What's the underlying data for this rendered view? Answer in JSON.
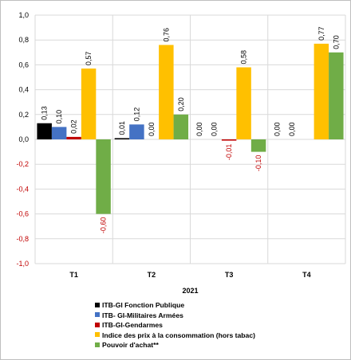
{
  "chart_data": {
    "type": "bar",
    "title": "",
    "xlabel": "2021",
    "ylabel": "",
    "ylim": [
      -1.0,
      1.0
    ],
    "yticks": [
      "1,0",
      "0,8",
      "0,6",
      "0,4",
      "0,2",
      "0,0",
      "-0,2",
      "-0,4",
      "-0,6",
      "-0,8",
      "-1,0"
    ],
    "grid": true,
    "legend_position": "bottom",
    "categories": [
      "T1",
      "T2",
      "T3",
      "T4"
    ],
    "series": [
      {
        "name": "ITB-GI Fonction Publique",
        "color": "#000000",
        "values": [
          0.13,
          0.01,
          0.0,
          0.0
        ],
        "labels": [
          "0,13",
          "0,01",
          "0,00",
          "0,00"
        ]
      },
      {
        "name": "ITB- GI-Militaires Armées",
        "color": "#4472c4",
        "values": [
          0.1,
          0.12,
          0.0,
          0.0
        ],
        "labels": [
          "0,10",
          "0,12",
          "0,00",
          "0,00"
        ]
      },
      {
        "name": "ITB-GI-Gendarmes",
        "color": "#c00000",
        "values": [
          0.02,
          0.0,
          -0.01,
          null
        ],
        "labels": [
          "0,02",
          "0,00",
          "-0,01",
          ""
        ]
      },
      {
        "name": "Indice des prix à la consommation (hors tabac)",
        "color": "#ffc000",
        "values": [
          0.57,
          0.76,
          0.58,
          0.77
        ],
        "labels": [
          "0,57",
          "0,76",
          "0,58",
          "0,77"
        ]
      },
      {
        "name": "Pouvoir d'achat**",
        "color": "#70ad47",
        "values": [
          -0.6,
          0.2,
          -0.1,
          0.7
        ],
        "labels": [
          "-0,60",
          "0,20",
          "-0,10",
          "0,70"
        ]
      }
    ]
  }
}
